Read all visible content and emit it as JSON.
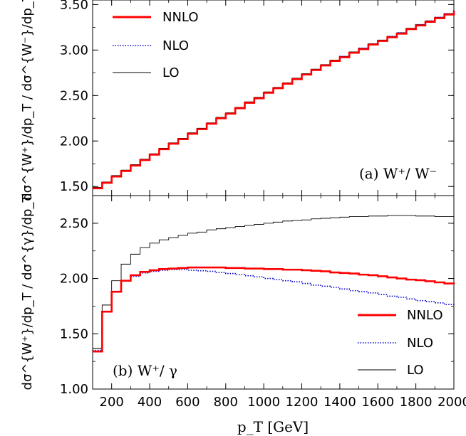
{
  "chart_data": [
    {
      "type": "line",
      "step": true,
      "annotation": "(a) W⁺/ W⁻",
      "ylabel": "dσ^{W⁺}/dp_T / dσ^{W⁻}/dp_T",
      "xlim": [
        100,
        2000
      ],
      "ylim": [
        1.4,
        3.55
      ],
      "yticks": [
        "1.50",
        "2.00",
        "2.50",
        "3.00",
        "3.50"
      ],
      "legend_position": "top-left",
      "x": [
        100,
        150,
        200,
        250,
        300,
        350,
        400,
        450,
        500,
        550,
        600,
        650,
        700,
        750,
        800,
        850,
        900,
        950,
        1000,
        1050,
        1100,
        1150,
        1200,
        1250,
        1300,
        1350,
        1400,
        1450,
        1500,
        1550,
        1600,
        1650,
        1700,
        1750,
        1800,
        1850,
        1900,
        1950,
        2000
      ],
      "series": [
        {
          "name": "NNLO",
          "color": "#ff0000",
          "style": "solid",
          "width": 2.6,
          "values": [
            1.48,
            1.54,
            1.61,
            1.67,
            1.73,
            1.79,
            1.85,
            1.91,
            1.97,
            2.02,
            2.08,
            2.13,
            2.19,
            2.25,
            2.3,
            2.36,
            2.42,
            2.47,
            2.53,
            2.58,
            2.63,
            2.68,
            2.73,
            2.78,
            2.83,
            2.88,
            2.92,
            2.97,
            3.01,
            3.06,
            3.1,
            3.14,
            3.18,
            3.23,
            3.27,
            3.31,
            3.35,
            3.39,
            3.43
          ]
        },
        {
          "name": "NLO",
          "color": "#0000cc",
          "style": "dotted",
          "width": 1.6,
          "values": [
            1.48,
            1.54,
            1.61,
            1.67,
            1.73,
            1.79,
            1.85,
            1.91,
            1.97,
            2.02,
            2.08,
            2.13,
            2.19,
            2.25,
            2.3,
            2.36,
            2.42,
            2.47,
            2.53,
            2.58,
            2.63,
            2.68,
            2.73,
            2.78,
            2.83,
            2.88,
            2.93,
            2.97,
            3.02,
            3.06,
            3.1,
            3.15,
            3.19,
            3.23,
            3.28,
            3.32,
            3.36,
            3.4,
            3.44
          ]
        },
        {
          "name": "LO",
          "color": "#000000",
          "style": "solid",
          "width": 0.9,
          "values": [
            1.49,
            1.55,
            1.62,
            1.68,
            1.74,
            1.8,
            1.86,
            1.92,
            1.98,
            2.03,
            2.09,
            2.14,
            2.2,
            2.26,
            2.31,
            2.37,
            2.43,
            2.48,
            2.54,
            2.59,
            2.64,
            2.69,
            2.74,
            2.79,
            2.84,
            2.89,
            2.93,
            2.98,
            3.02,
            3.07,
            3.11,
            3.15,
            3.19,
            3.24,
            3.28,
            3.32,
            3.36,
            3.4,
            3.43
          ]
        }
      ]
    },
    {
      "type": "line",
      "step": true,
      "annotation": "(b) W⁺/ γ",
      "ylabel": "dσ^{W⁺}/dp_T / dσ^{γ}/dp_T",
      "xlabel": "p_T [GeV]",
      "xlim": [
        100,
        2000
      ],
      "ylim": [
        1.0,
        2.75
      ],
      "yticks": [
        "1.00",
        "1.50",
        "2.00",
        "2.50"
      ],
      "xticks": [
        "200",
        "400",
        "600",
        "800",
        "1000",
        "1200",
        "1400",
        "1600",
        "1800",
        "2000"
      ],
      "legend_position": "bottom-right",
      "x": [
        100,
        150,
        200,
        250,
        300,
        350,
        400,
        450,
        500,
        550,
        600,
        650,
        700,
        750,
        800,
        850,
        900,
        950,
        1000,
        1050,
        1100,
        1150,
        1200,
        1250,
        1300,
        1350,
        1400,
        1450,
        1500,
        1550,
        1600,
        1650,
        1700,
        1750,
        1800,
        1850,
        1900,
        1950,
        2000
      ],
      "series": [
        {
          "name": "NNLO",
          "color": "#ff0000",
          "style": "solid",
          "width": 2.6,
          "values": [
            1.34,
            1.7,
            1.88,
            1.98,
            2.03,
            2.06,
            2.075,
            2.085,
            2.09,
            2.095,
            2.1,
            2.1,
            2.1,
            2.1,
            2.095,
            2.095,
            2.09,
            2.09,
            2.085,
            2.085,
            2.08,
            2.08,
            2.075,
            2.07,
            2.065,
            2.055,
            2.05,
            2.045,
            2.035,
            2.03,
            2.02,
            2.01,
            2.0,
            1.99,
            1.985,
            1.975,
            1.965,
            1.955,
            1.95
          ]
        },
        {
          "name": "NLO",
          "color": "#0000cc",
          "style": "dotted",
          "width": 1.6,
          "values": [
            1.35,
            1.7,
            1.88,
            1.98,
            2.02,
            2.05,
            2.065,
            2.075,
            2.08,
            2.08,
            2.075,
            2.07,
            2.065,
            2.055,
            2.045,
            2.035,
            2.025,
            2.015,
            2.0,
            1.99,
            1.98,
            1.97,
            1.955,
            1.94,
            1.93,
            1.92,
            1.905,
            1.89,
            1.88,
            1.87,
            1.855,
            1.84,
            1.83,
            1.815,
            1.8,
            1.79,
            1.78,
            1.765,
            1.75
          ]
        },
        {
          "name": "LO",
          "color": "#000000",
          "style": "solid",
          "width": 0.9,
          "values": [
            1.37,
            1.76,
            1.98,
            2.13,
            2.22,
            2.28,
            2.32,
            2.35,
            2.37,
            2.39,
            2.41,
            2.42,
            2.44,
            2.45,
            2.46,
            2.47,
            2.48,
            2.49,
            2.5,
            2.51,
            2.52,
            2.525,
            2.53,
            2.54,
            2.545,
            2.55,
            2.555,
            2.56,
            2.56,
            2.565,
            2.565,
            2.57,
            2.57,
            2.57,
            2.565,
            2.565,
            2.56,
            2.56,
            2.555
          ]
        }
      ]
    }
  ]
}
